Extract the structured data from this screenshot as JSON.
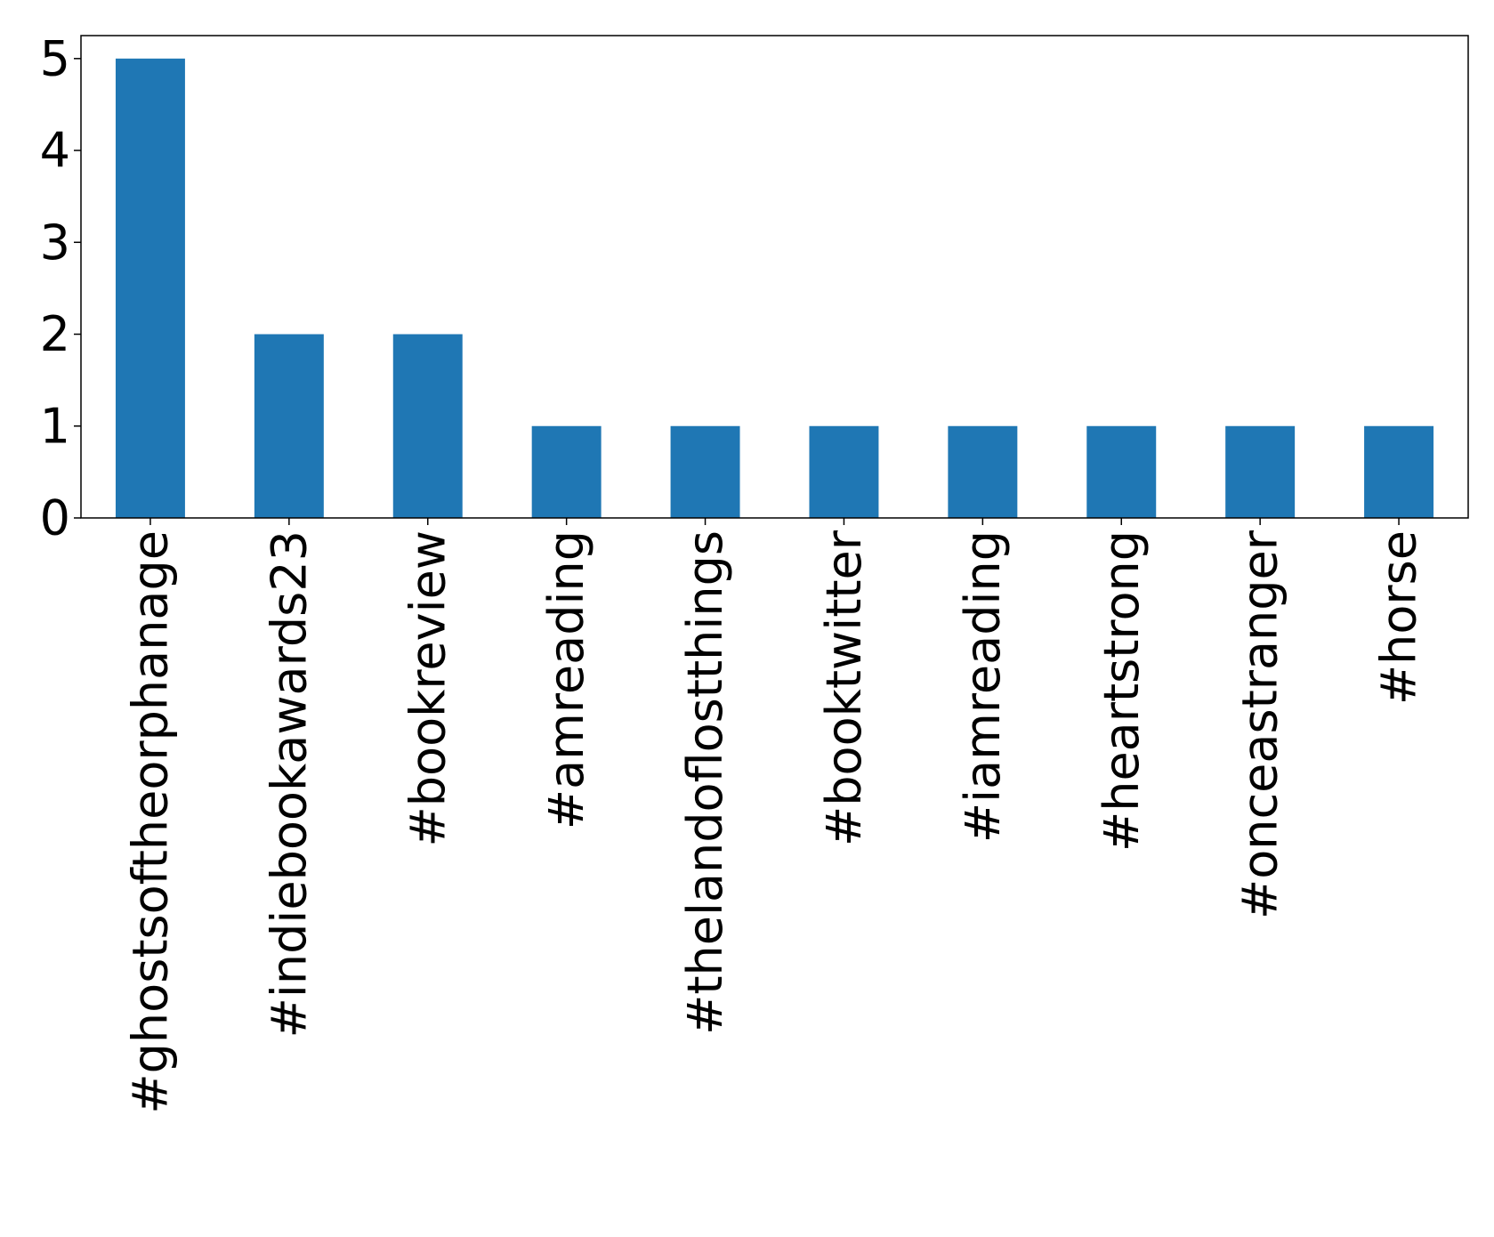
{
  "chart_data": {
    "type": "bar",
    "categories": [
      "#ghostsoftheorphanage",
      "#indiebookawards23",
      "#bookreview",
      "#amreading",
      "#thelandoflostthings",
      "#booktwitter",
      "#iamreading",
      "#heartstrong",
      "#onceastranger",
      "#horse"
    ],
    "values": [
      5,
      2,
      2,
      1,
      1,
      1,
      1,
      1,
      1,
      1
    ],
    "title": "",
    "xlabel": "",
    "ylabel": "",
    "ylim": [
      0,
      5.25
    ],
    "yticks": [
      "0",
      "1",
      "2",
      "3",
      "4",
      "5"
    ],
    "grid": false,
    "legend": "none",
    "bar_color": "#1f77b4",
    "x_tick_rotation": "vertical"
  }
}
